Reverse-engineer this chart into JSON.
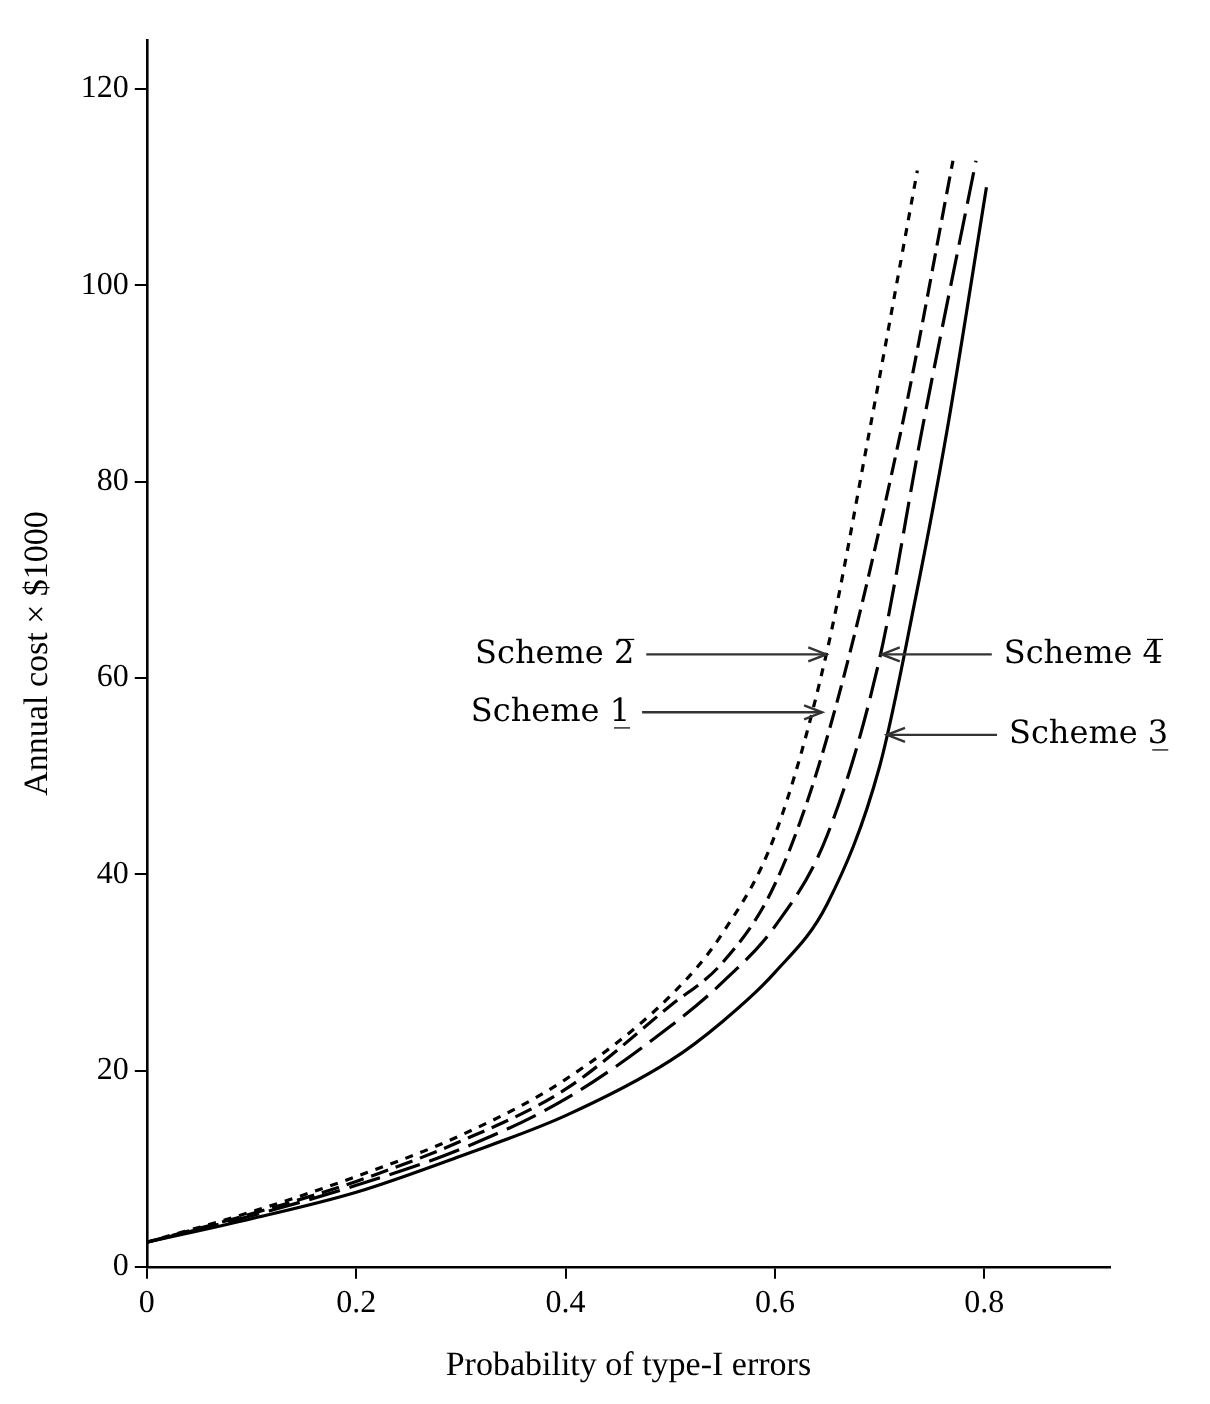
{
  "chart_data": {
    "type": "line",
    "xlabel": "Probability of type-I errors",
    "ylabel": "Annual cost × $1000",
    "xlim": [
      0,
      0.92
    ],
    "xticks": [
      0,
      0.2,
      0.4,
      0.6,
      0.8
    ],
    "ylim": [
      0,
      125
    ],
    "yticks": [
      0,
      20,
      40,
      60,
      80,
      100,
      120
    ],
    "grid": false,
    "legend": false,
    "marker": "none",
    "series": [
      {
        "color": "#000000",
        "line_style": "dotted",
        "x": [
          0,
          0.1,
          0.2,
          0.3,
          0.4,
          0.5,
          0.55,
          0.6,
          0.649,
          0.69,
          0.736
        ],
        "values": [
          2.5,
          5.6,
          9.2,
          13.4,
          19.1,
          27.6,
          34,
          44,
          62.4,
          85,
          111.7
        ]
      },
      {
        "color": "#000000",
        "line_style": "dashed",
        "x": [
          0,
          0.1,
          0.2,
          0.3,
          0.4,
          0.5,
          0.55,
          0.6,
          0.65,
          0.72,
          0.77
        ],
        "values": [
          2.5,
          5.4,
          8.7,
          12.8,
          18.1,
          26.6,
          31,
          39,
          54,
          85,
          112.7
        ]
      },
      {
        "color": "#000000",
        "line_style": "dashed",
        "x": [
          0,
          0.1,
          0.2,
          0.3,
          0.4,
          0.5,
          0.55,
          0.6,
          0.65,
          0.7,
          0.74,
          0.792
        ],
        "values": [
          2.5,
          5.2,
          8.3,
          12,
          17.1,
          24.5,
          29,
          34.7,
          44,
          62,
          85,
          112.7
        ]
      },
      {
        "color": "#000000",
        "line_style": "solid",
        "x": [
          0,
          0.1,
          0.2,
          0.3,
          0.4,
          0.5,
          0.55,
          0.6,
          0.65,
          0.7,
          0.734,
          0.764,
          0.802
        ],
        "values": [
          2.5,
          4.9,
          7.6,
          11.3,
          15.4,
          21,
          25,
          30,
          37,
          51,
          68,
          85,
          110
        ]
      }
    ],
    "annotations": [
      {
        "text": "Scheme 2̅",
        "x": 0.649,
        "y": 62.4
      },
      {
        "text": "Scheme 1̲",
        "x": 0.645,
        "y": 56.5
      },
      {
        "text": "Scheme 4̅",
        "x": 0.702,
        "y": 62.4
      },
      {
        "text": "Scheme 3̲",
        "x": 0.707,
        "y": 54.2
      }
    ]
  }
}
